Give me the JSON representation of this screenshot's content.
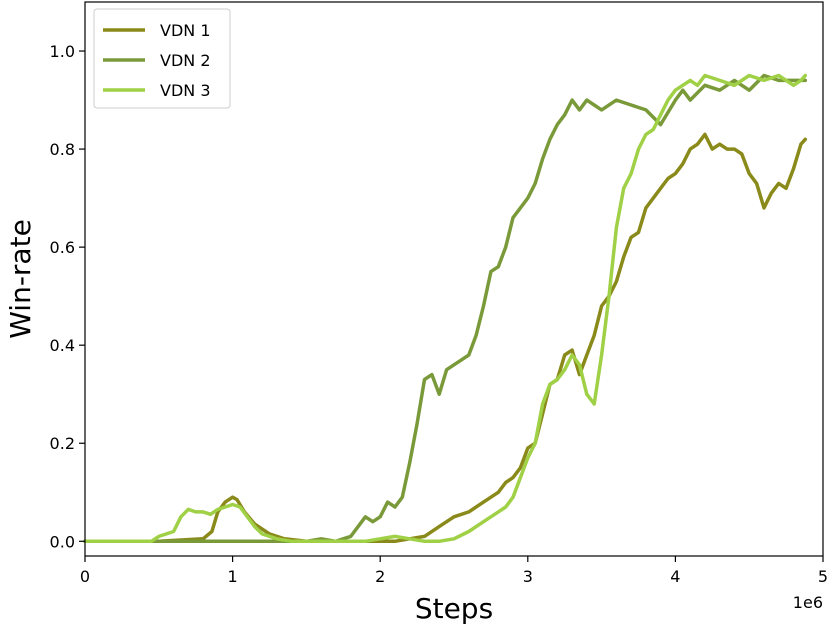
{
  "chart_data": {
    "type": "line",
    "xlabel": "Steps",
    "ylabel": "Win-rate",
    "x_offset_label": "1e6",
    "xlim": [
      0,
      5
    ],
    "ylim": [
      -0.03,
      1.1
    ],
    "xticks": [
      0,
      1,
      2,
      3,
      4,
      5
    ],
    "xtick_labels": [
      "0",
      "1",
      "2",
      "3",
      "4",
      "5"
    ],
    "yticks": [
      0.0,
      0.2,
      0.4,
      0.6,
      0.8,
      1.0
    ],
    "ytick_labels": [
      "0.0",
      "0.2",
      "0.4",
      "0.6",
      "0.8",
      "1.0"
    ],
    "grid": false,
    "legend_position": "top-left",
    "series": [
      {
        "name": "VDN 1",
        "color": "#8a8a1a",
        "x": [
          0,
          0.5,
          0.8,
          0.86,
          0.9,
          0.95,
          1.0,
          1.03,
          1.08,
          1.15,
          1.25,
          1.35,
          1.5,
          1.7,
          1.9,
          2.0,
          2.1,
          2.2,
          2.3,
          2.4,
          2.5,
          2.6,
          2.7,
          2.8,
          2.85,
          2.9,
          2.95,
          3.0,
          3.05,
          3.1,
          3.15,
          3.2,
          3.25,
          3.3,
          3.35,
          3.4,
          3.45,
          3.5,
          3.55,
          3.6,
          3.65,
          3.7,
          3.75,
          3.8,
          3.85,
          3.9,
          3.95,
          4.0,
          4.05,
          4.1,
          4.15,
          4.2,
          4.25,
          4.3,
          4.35,
          4.4,
          4.45,
          4.5,
          4.55,
          4.6,
          4.65,
          4.7,
          4.75,
          4.8,
          4.85,
          4.88
        ],
        "values": [
          0.0,
          0.0,
          0.005,
          0.02,
          0.06,
          0.08,
          0.09,
          0.085,
          0.06,
          0.035,
          0.015,
          0.005,
          0.0,
          0.0,
          0.0,
          0.0,
          0.0,
          0.005,
          0.01,
          0.03,
          0.05,
          0.06,
          0.08,
          0.1,
          0.12,
          0.13,
          0.15,
          0.19,
          0.2,
          0.26,
          0.32,
          0.33,
          0.38,
          0.39,
          0.34,
          0.38,
          0.42,
          0.48,
          0.5,
          0.53,
          0.58,
          0.62,
          0.63,
          0.68,
          0.7,
          0.72,
          0.74,
          0.75,
          0.77,
          0.8,
          0.81,
          0.83,
          0.8,
          0.81,
          0.8,
          0.8,
          0.79,
          0.75,
          0.73,
          0.68,
          0.71,
          0.73,
          0.72,
          0.76,
          0.81,
          0.82
        ]
      },
      {
        "name": "VDN 2",
        "color": "#7a9a3a",
        "x": [
          0,
          1.0,
          1.5,
          1.6,
          1.7,
          1.75,
          1.8,
          1.85,
          1.9,
          1.95,
          2.0,
          2.05,
          2.1,
          2.15,
          2.2,
          2.25,
          2.3,
          2.35,
          2.4,
          2.45,
          2.5,
          2.55,
          2.6,
          2.65,
          2.7,
          2.75,
          2.8,
          2.85,
          2.9,
          2.95,
          3.0,
          3.05,
          3.1,
          3.15,
          3.2,
          3.25,
          3.3,
          3.35,
          3.4,
          3.45,
          3.5,
          3.6,
          3.7,
          3.8,
          3.9,
          4.0,
          4.05,
          4.1,
          4.2,
          4.3,
          4.4,
          4.5,
          4.6,
          4.7,
          4.8,
          4.88
        ],
        "values": [
          0.0,
          0.0,
          0.0,
          0.005,
          0.0,
          0.005,
          0.01,
          0.03,
          0.05,
          0.04,
          0.05,
          0.08,
          0.07,
          0.09,
          0.16,
          0.24,
          0.33,
          0.34,
          0.3,
          0.35,
          0.36,
          0.37,
          0.38,
          0.42,
          0.48,
          0.55,
          0.56,
          0.6,
          0.66,
          0.68,
          0.7,
          0.73,
          0.78,
          0.82,
          0.85,
          0.87,
          0.9,
          0.88,
          0.9,
          0.89,
          0.88,
          0.9,
          0.89,
          0.88,
          0.85,
          0.9,
          0.92,
          0.9,
          0.93,
          0.92,
          0.94,
          0.92,
          0.95,
          0.94,
          0.94,
          0.94
        ]
      },
      {
        "name": "VDN 3",
        "color": "#9fd046",
        "x": [
          0,
          0.45,
          0.5,
          0.6,
          0.65,
          0.7,
          0.75,
          0.8,
          0.85,
          0.9,
          0.95,
          1.0,
          1.05,
          1.1,
          1.15,
          1.2,
          1.3,
          1.4,
          1.5,
          1.7,
          1.9,
          2.0,
          2.1,
          2.2,
          2.3,
          2.4,
          2.5,
          2.6,
          2.7,
          2.8,
          2.85,
          2.9,
          2.95,
          3.0,
          3.05,
          3.1,
          3.15,
          3.2,
          3.25,
          3.3,
          3.35,
          3.4,
          3.45,
          3.5,
          3.55,
          3.6,
          3.65,
          3.7,
          3.75,
          3.8,
          3.85,
          3.9,
          3.95,
          4.0,
          4.05,
          4.1,
          4.15,
          4.2,
          4.3,
          4.4,
          4.5,
          4.6,
          4.7,
          4.8,
          4.85,
          4.88
        ],
        "values": [
          0.0,
          0.0,
          0.01,
          0.02,
          0.05,
          0.065,
          0.06,
          0.06,
          0.055,
          0.065,
          0.07,
          0.075,
          0.07,
          0.05,
          0.03,
          0.015,
          0.005,
          0.0,
          0.0,
          0.0,
          0.0,
          0.005,
          0.01,
          0.005,
          0.0,
          0.0,
          0.005,
          0.02,
          0.04,
          0.06,
          0.07,
          0.09,
          0.13,
          0.17,
          0.2,
          0.28,
          0.32,
          0.33,
          0.35,
          0.38,
          0.36,
          0.3,
          0.28,
          0.38,
          0.5,
          0.64,
          0.72,
          0.75,
          0.8,
          0.83,
          0.84,
          0.87,
          0.9,
          0.92,
          0.93,
          0.94,
          0.93,
          0.95,
          0.94,
          0.93,
          0.95,
          0.94,
          0.95,
          0.93,
          0.94,
          0.95
        ]
      }
    ]
  }
}
